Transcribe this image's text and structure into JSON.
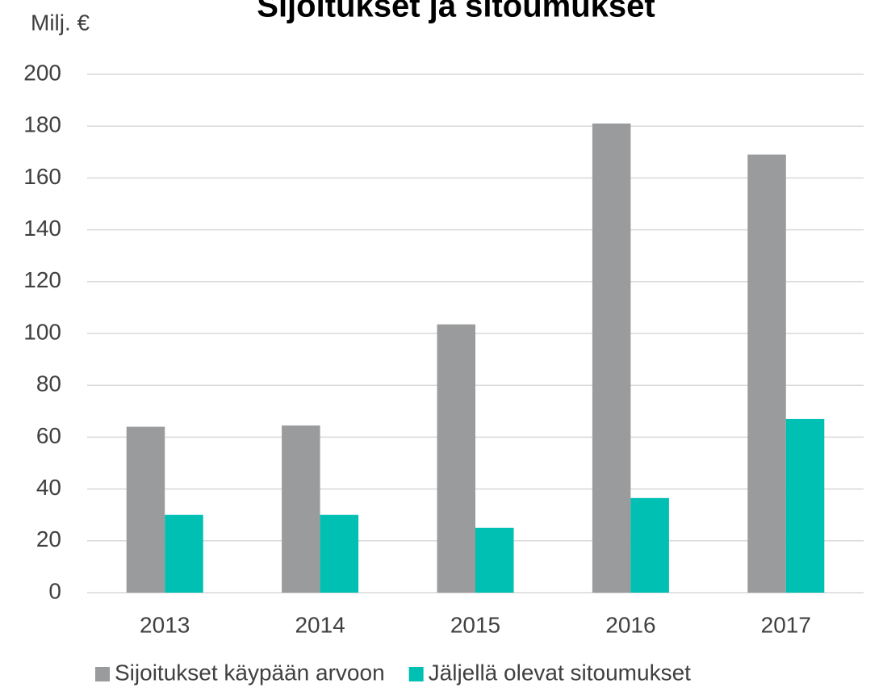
{
  "chart_data": {
    "type": "bar",
    "title": "Sijoitukset ja sitoumukset",
    "y_label": "Milj. €",
    "categories": [
      "2013",
      "2014",
      "2015",
      "2016",
      "2017"
    ],
    "series": [
      {
        "name": "Sijoitukset käypään arvoon",
        "color": "#9a9b9c",
        "values": [
          64,
          64.5,
          103.5,
          181,
          169
        ]
      },
      {
        "name": "Jäljellä olevat sitoumukset",
        "color": "#00bfb3",
        "values": [
          30,
          30,
          25,
          36.5,
          67
        ]
      }
    ],
    "ylim": [
      0,
      200
    ],
    "yticks": [
      0,
      20,
      40,
      60,
      80,
      100,
      120,
      140,
      160,
      180,
      200
    ],
    "grid": true,
    "legend": "bottom"
  }
}
